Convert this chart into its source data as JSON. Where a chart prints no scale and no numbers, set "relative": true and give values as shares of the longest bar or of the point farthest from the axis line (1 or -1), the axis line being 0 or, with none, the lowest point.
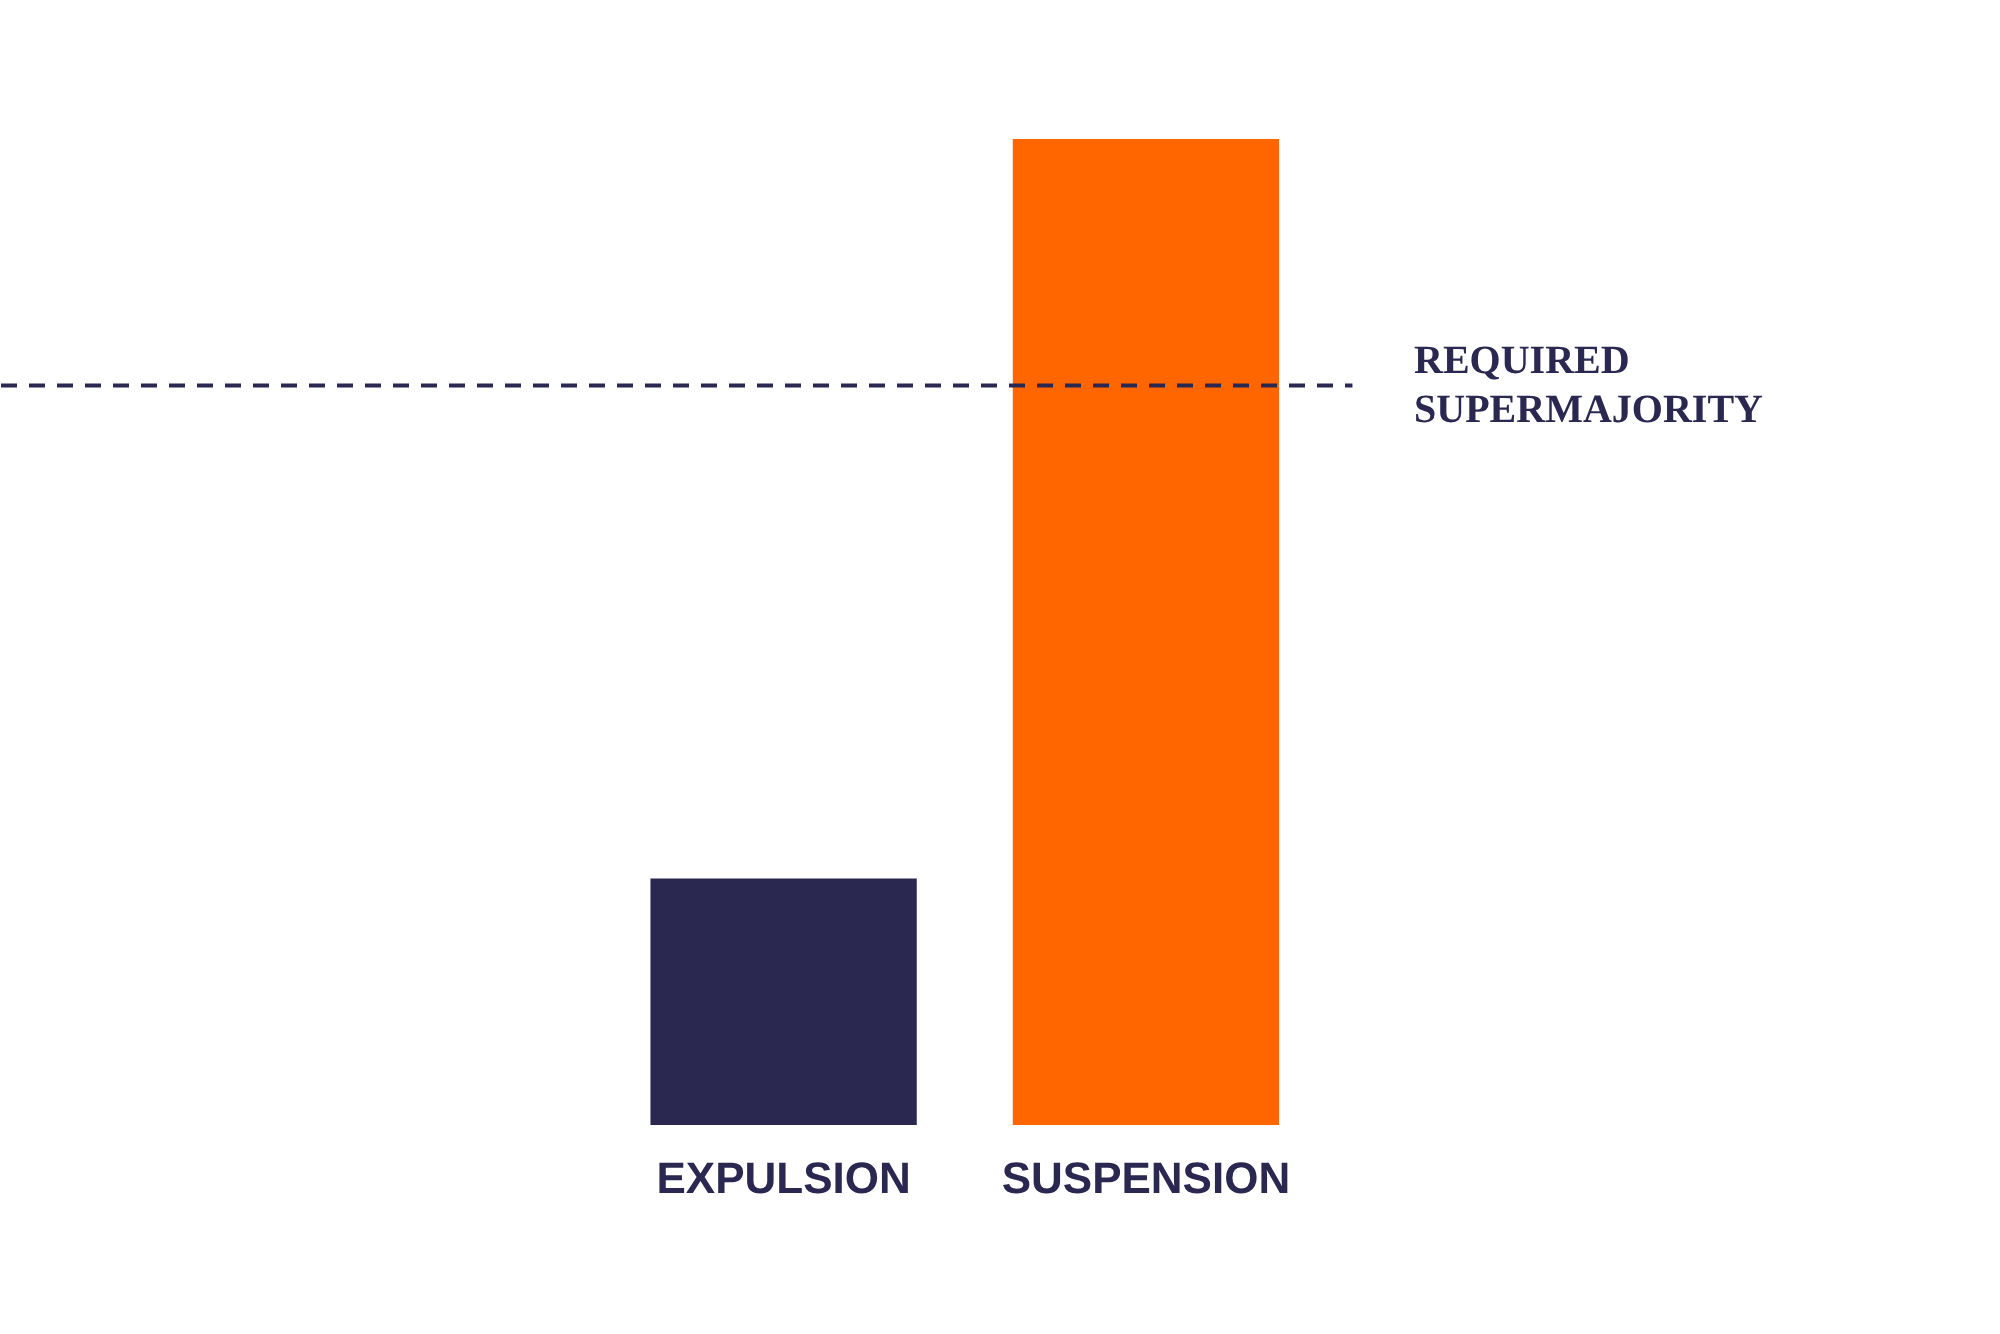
{
  "chart_data": {
    "type": "bar",
    "relative": true,
    "categories": [
      "EXPULSION",
      "SUSPENSION"
    ],
    "values": [
      0.25,
      1
    ],
    "colors": [
      "#2a2850",
      "#ff6600"
    ],
    "ref_lines": [
      {
        "axis": "y",
        "value": 0.75,
        "label": "REQUIRED SUPERMAJORITY",
        "color": "#2a2850",
        "line_style": "dashed"
      }
    ],
    "grid": false
  }
}
